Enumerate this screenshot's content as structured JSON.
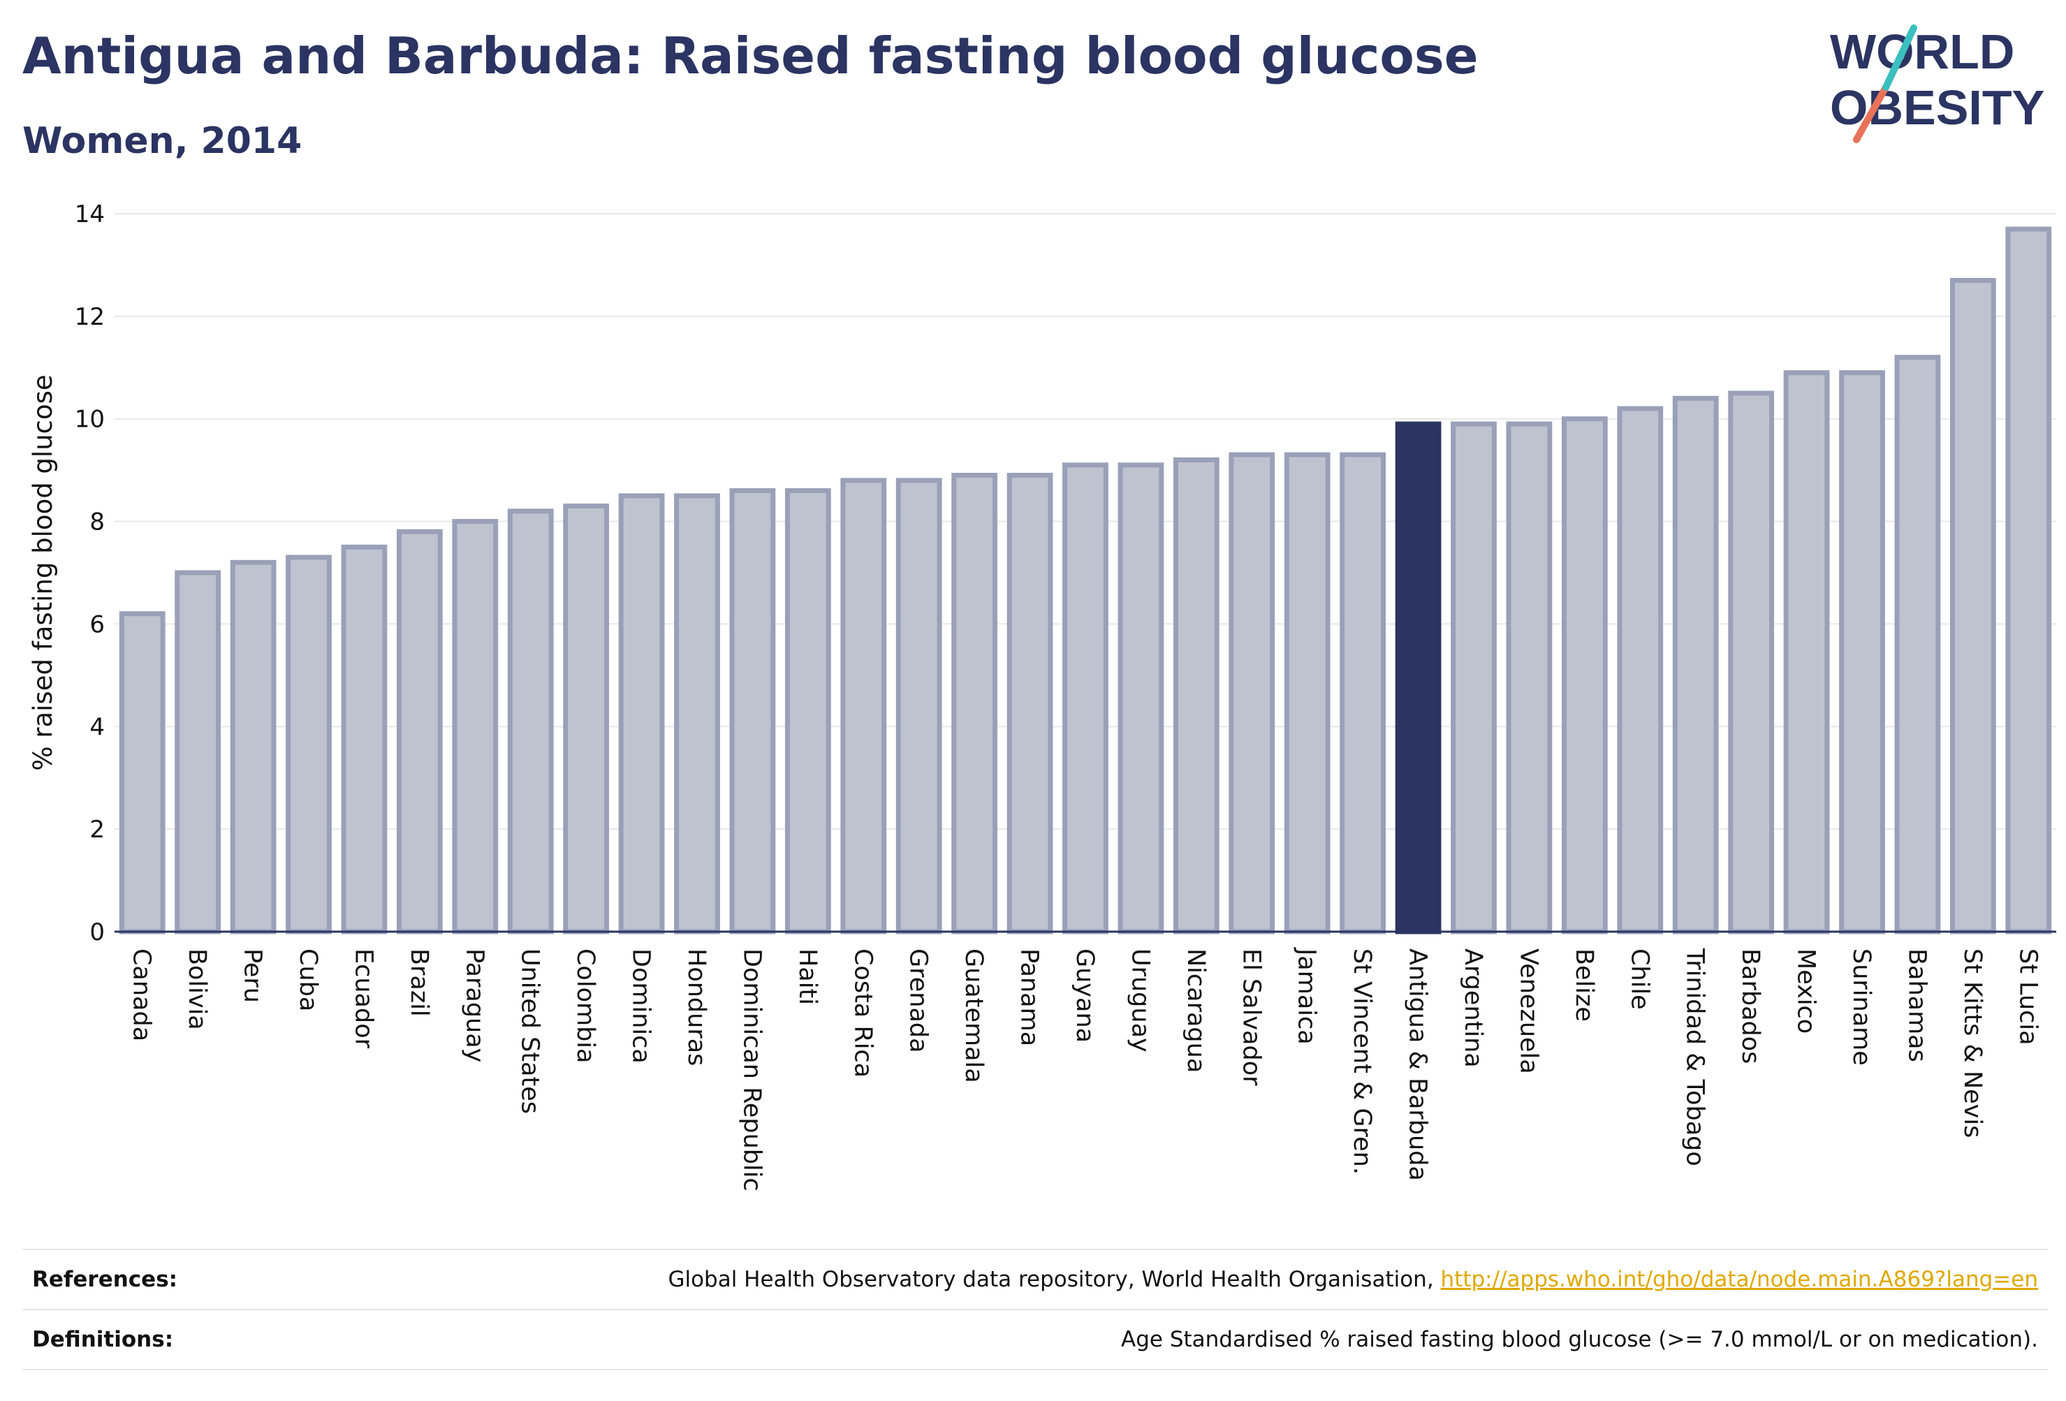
{
  "title": "Antigua and Barbuda: Raised fasting blood glucose",
  "subtitle": "Women, 2014",
  "logo": {
    "line1": "WORLD",
    "line2": "OBESITY"
  },
  "colors": {
    "bar": "#bfc3d0",
    "bar_border": "#9aa0b8",
    "highlight": "#2b3462",
    "title": "#2b3462",
    "grid": "#e8e8e8",
    "link": "#e0a800"
  },
  "chart_data": {
    "type": "bar",
    "title": "Antigua and Barbuda: Raised fasting blood glucose",
    "subtitle": "Women, 2014",
    "xlabel": "",
    "ylabel": "% raised fasting blood glucose",
    "ylim": [
      0,
      14
    ],
    "yticks": [
      0,
      2,
      4,
      6,
      8,
      10,
      12,
      14
    ],
    "grid": true,
    "highlight": "Antigua & Barbuda",
    "categories": [
      "Canada",
      "Bolivia",
      "Peru",
      "Cuba",
      "Ecuador",
      "Brazil",
      "Paraguay",
      "United States",
      "Colombia",
      "Dominica",
      "Honduras",
      "Dominican Republic",
      "Haiti",
      "Costa Rica",
      "Grenada",
      "Guatemala",
      "Panama",
      "Guyana",
      "Uruguay",
      "Nicaragua",
      "El Salvador",
      "Jamaica",
      "St Vincent & Gren.",
      "Antigua & Barbuda",
      "Argentina",
      "Venezuela",
      "Belize",
      "Chile",
      "Trinidad & Tobago",
      "Barbados",
      "Mexico",
      "Suriname",
      "Bahamas",
      "St Kitts & Nevis",
      "St Lucia"
    ],
    "values": [
      6.2,
      7.0,
      7.2,
      7.3,
      7.5,
      7.8,
      8.0,
      8.2,
      8.3,
      8.5,
      8.5,
      8.6,
      8.6,
      8.8,
      8.8,
      8.9,
      8.9,
      9.1,
      9.1,
      9.2,
      9.3,
      9.3,
      9.3,
      9.9,
      9.9,
      9.9,
      10.0,
      10.2,
      10.4,
      10.5,
      10.9,
      10.9,
      11.2,
      12.7,
      13.7
    ]
  },
  "footer": {
    "references_label": "References:",
    "references_text": "Global Health Observatory data repository, World Health Organisation, ",
    "references_link": "http://apps.who.int/gho/data/node.main.A869?lang=en",
    "definitions_label": "Definitions:",
    "definitions_text": "Age Standardised % raised fasting blood glucose (>= 7.0 mmol/L or on medication)."
  }
}
